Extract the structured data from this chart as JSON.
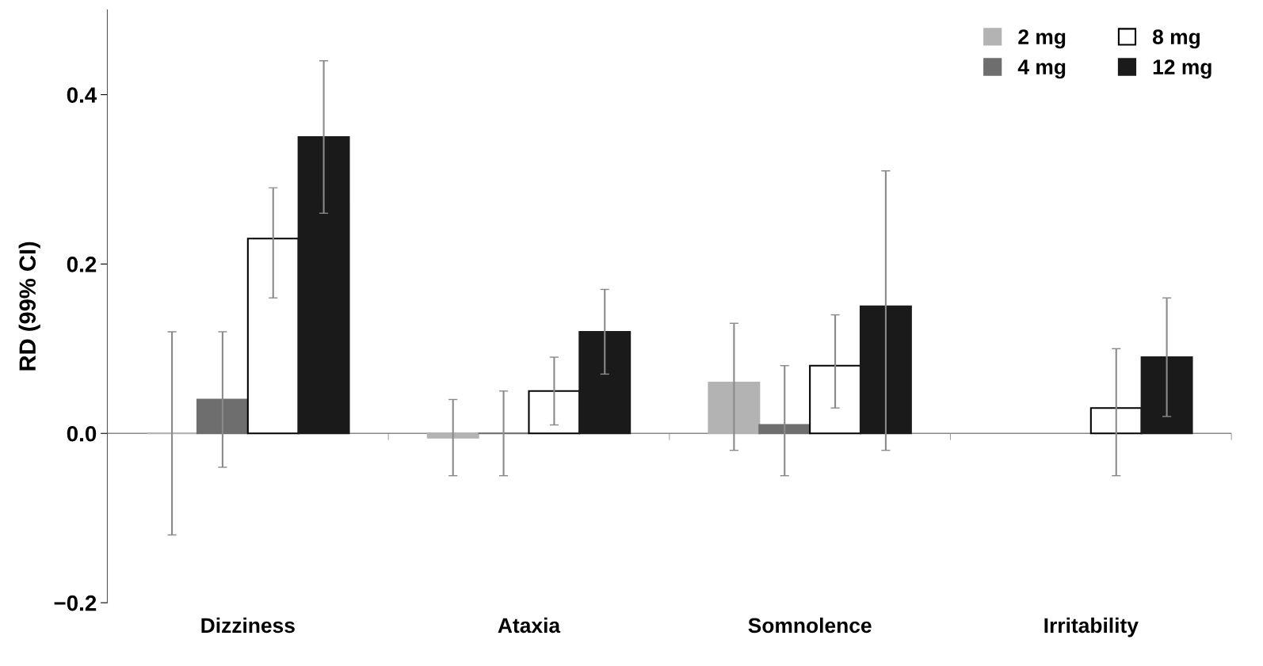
{
  "chart_data": {
    "type": "bar",
    "ylabel": "RD (99% CI)",
    "categories": [
      "Dizziness",
      "Ataxia",
      "Somnolence",
      "Irritability"
    ],
    "series": [
      {
        "name": "2 mg",
        "color": "#b3b3b3",
        "values": [
          0,
          -0.005,
          0.06,
          null
        ],
        "errors": [
          [
            -0.12,
            0.12
          ],
          [
            -0.05,
            0.04
          ],
          [
            -0.02,
            0.13
          ],
          null
        ]
      },
      {
        "name": "4 mg",
        "color": "#6e6e6e",
        "values": [
          0.04,
          0,
          0.01,
          null
        ],
        "errors": [
          [
            -0.04,
            0.12
          ],
          [
            -0.05,
            0.05
          ],
          [
            -0.05,
            0.08
          ],
          null
        ]
      },
      {
        "name": "8 mg",
        "color": "#ffffff",
        "values": [
          0.23,
          0.05,
          0.08,
          0.03
        ],
        "errors": [
          [
            0.16,
            0.29
          ],
          [
            0.01,
            0.09
          ],
          [
            0.03,
            0.14
          ],
          [
            -0.05,
            0.1
          ]
        ]
      },
      {
        "name": "12 mg",
        "color": "#1a1a1a",
        "values": [
          0.35,
          0.12,
          0.15,
          0.09
        ],
        "errors": [
          [
            0.26,
            0.44
          ],
          [
            0.07,
            0.17
          ],
          [
            -0.02,
            0.31
          ],
          [
            0.02,
            0.16
          ]
        ]
      }
    ],
    "ylim": [
      -0.2,
      0.5
    ],
    "yticks": [
      {
        "value": -0.2,
        "label": "−0.2"
      },
      {
        "value": 0,
        "label": "0.0"
      },
      {
        "value": 0.2,
        "label": "0.2"
      },
      {
        "value": 0.4,
        "label": "0.4"
      }
    ],
    "ref_lines": [
      {
        "axis": "y",
        "value": 0,
        "color": "#888888"
      }
    ],
    "grid": false,
    "legend": "top right"
  }
}
